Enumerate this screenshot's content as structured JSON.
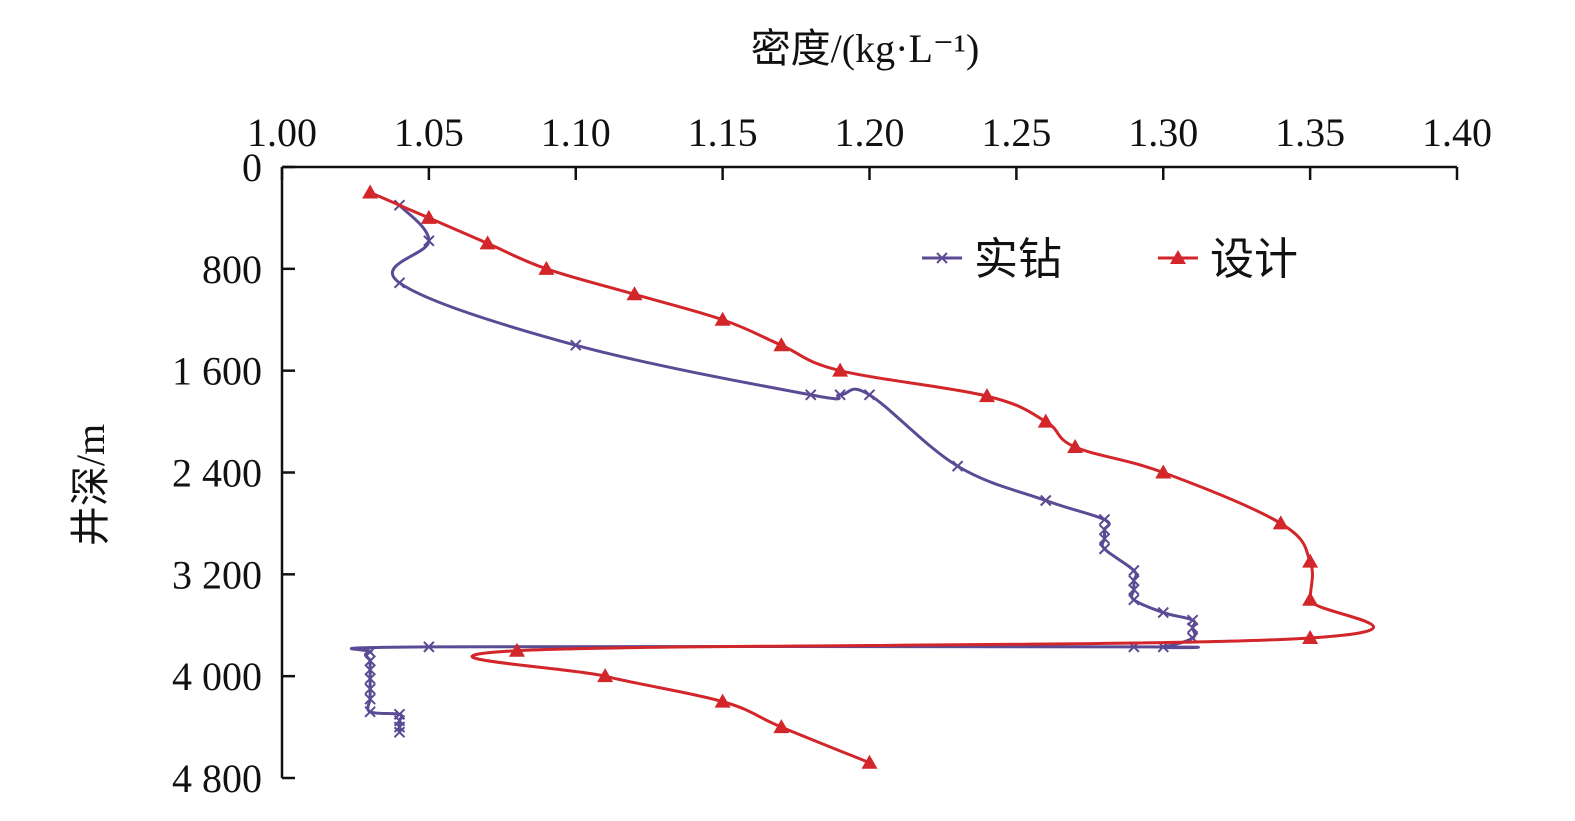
{
  "chart_data": {
    "type": "line",
    "title": "",
    "xlabel": "密度/(kg·L⁻¹)",
    "ylabel": "井深/m",
    "xlim": [
      1.0,
      1.4
    ],
    "ylim": [
      0,
      4800
    ],
    "y_inverted": true,
    "x_axis_position": "top",
    "x_ticks": [
      "1.00",
      "1.05",
      "1.10",
      "1.15",
      "1.20",
      "1.25",
      "1.30",
      "1.35",
      "1.40"
    ],
    "x_tick_values": [
      1.0,
      1.05,
      1.1,
      1.15,
      1.2,
      1.25,
      1.3,
      1.35,
      1.4
    ],
    "y_ticks": [
      "0",
      "800",
      "1 600",
      "2 400",
      "3 200",
      "4 000",
      "4 800"
    ],
    "y_tick_values": [
      0,
      800,
      1600,
      2400,
      3200,
      4000,
      4800
    ],
    "grid": false,
    "legend_position": "top-right",
    "series": [
      {
        "name": "实钻",
        "color": "#5b4a94",
        "marker": "x",
        "points": [
          [
            1.04,
            300
          ],
          [
            1.05,
            580
          ],
          [
            1.04,
            910
          ],
          [
            1.1,
            1400
          ],
          [
            1.18,
            1790
          ],
          [
            1.19,
            1790
          ],
          [
            1.2,
            1790
          ],
          [
            1.23,
            2350
          ],
          [
            1.26,
            2620
          ],
          [
            1.28,
            2770
          ],
          [
            1.28,
            2850
          ],
          [
            1.28,
            2920
          ],
          [
            1.28,
            3000
          ],
          [
            1.29,
            3170
          ],
          [
            1.29,
            3250
          ],
          [
            1.29,
            3320
          ],
          [
            1.29,
            3400
          ],
          [
            1.3,
            3500
          ],
          [
            1.31,
            3560
          ],
          [
            1.31,
            3620
          ],
          [
            1.31,
            3700
          ],
          [
            1.3,
            3770
          ],
          [
            1.29,
            3770
          ],
          [
            1.05,
            3770
          ],
          [
            1.03,
            3810
          ],
          [
            1.03,
            3880
          ],
          [
            1.03,
            3950
          ],
          [
            1.03,
            4020
          ],
          [
            1.03,
            4100
          ],
          [
            1.03,
            4180
          ],
          [
            1.03,
            4280
          ],
          [
            1.04,
            4300
          ],
          [
            1.04,
            4350
          ],
          [
            1.04,
            4400
          ],
          [
            1.04,
            4440
          ]
        ]
      },
      {
        "name": "设计",
        "color": "#d2262b",
        "marker": "triangle",
        "points": [
          [
            1.03,
            200
          ],
          [
            1.05,
            400
          ],
          [
            1.07,
            600
          ],
          [
            1.09,
            800
          ],
          [
            1.12,
            1000
          ],
          [
            1.15,
            1200
          ],
          [
            1.17,
            1400
          ],
          [
            1.19,
            1600
          ],
          [
            1.24,
            1800
          ],
          [
            1.26,
            2000
          ],
          [
            1.27,
            2200
          ],
          [
            1.3,
            2400
          ],
          [
            1.34,
            2800
          ],
          [
            1.35,
            3100
          ],
          [
            1.35,
            3400
          ],
          [
            1.35,
            3700
          ],
          [
            1.08,
            3800
          ],
          [
            1.11,
            4000
          ],
          [
            1.15,
            4200
          ],
          [
            1.17,
            4400
          ],
          [
            1.2,
            4680
          ]
        ]
      }
    ]
  }
}
